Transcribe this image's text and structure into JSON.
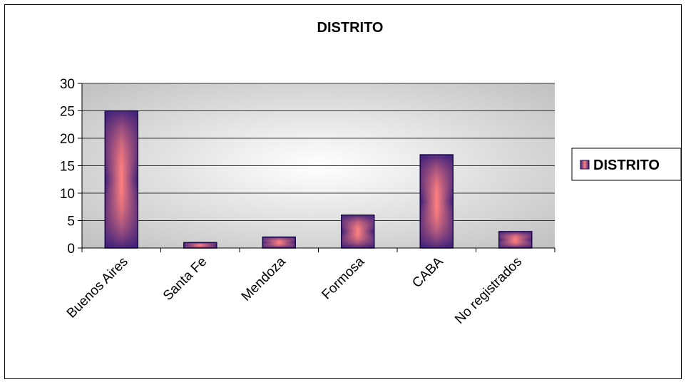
{
  "chart_data": {
    "type": "bar",
    "title": "DISTRITO",
    "categories": [
      "Buenos Aires",
      "Santa Fe",
      "Mendoza",
      "Formosa",
      "CABA",
      "No registrados"
    ],
    "series": [
      {
        "name": "DISTRITO",
        "values": [
          25,
          1,
          2,
          6,
          17,
          3
        ]
      }
    ],
    "ylim": [
      0,
      30
    ],
    "yticks": [
      0,
      5,
      10,
      15,
      20,
      25,
      30
    ],
    "grid": true,
    "legend": "right",
    "colors": {
      "bar_edge": "#1a0a4a",
      "bar_dark": "#3a1f7a",
      "bar_light": "#ff8080",
      "plot_bg_outer": "#c0c0c0",
      "plot_bg_inner": "#ffffff"
    }
  }
}
